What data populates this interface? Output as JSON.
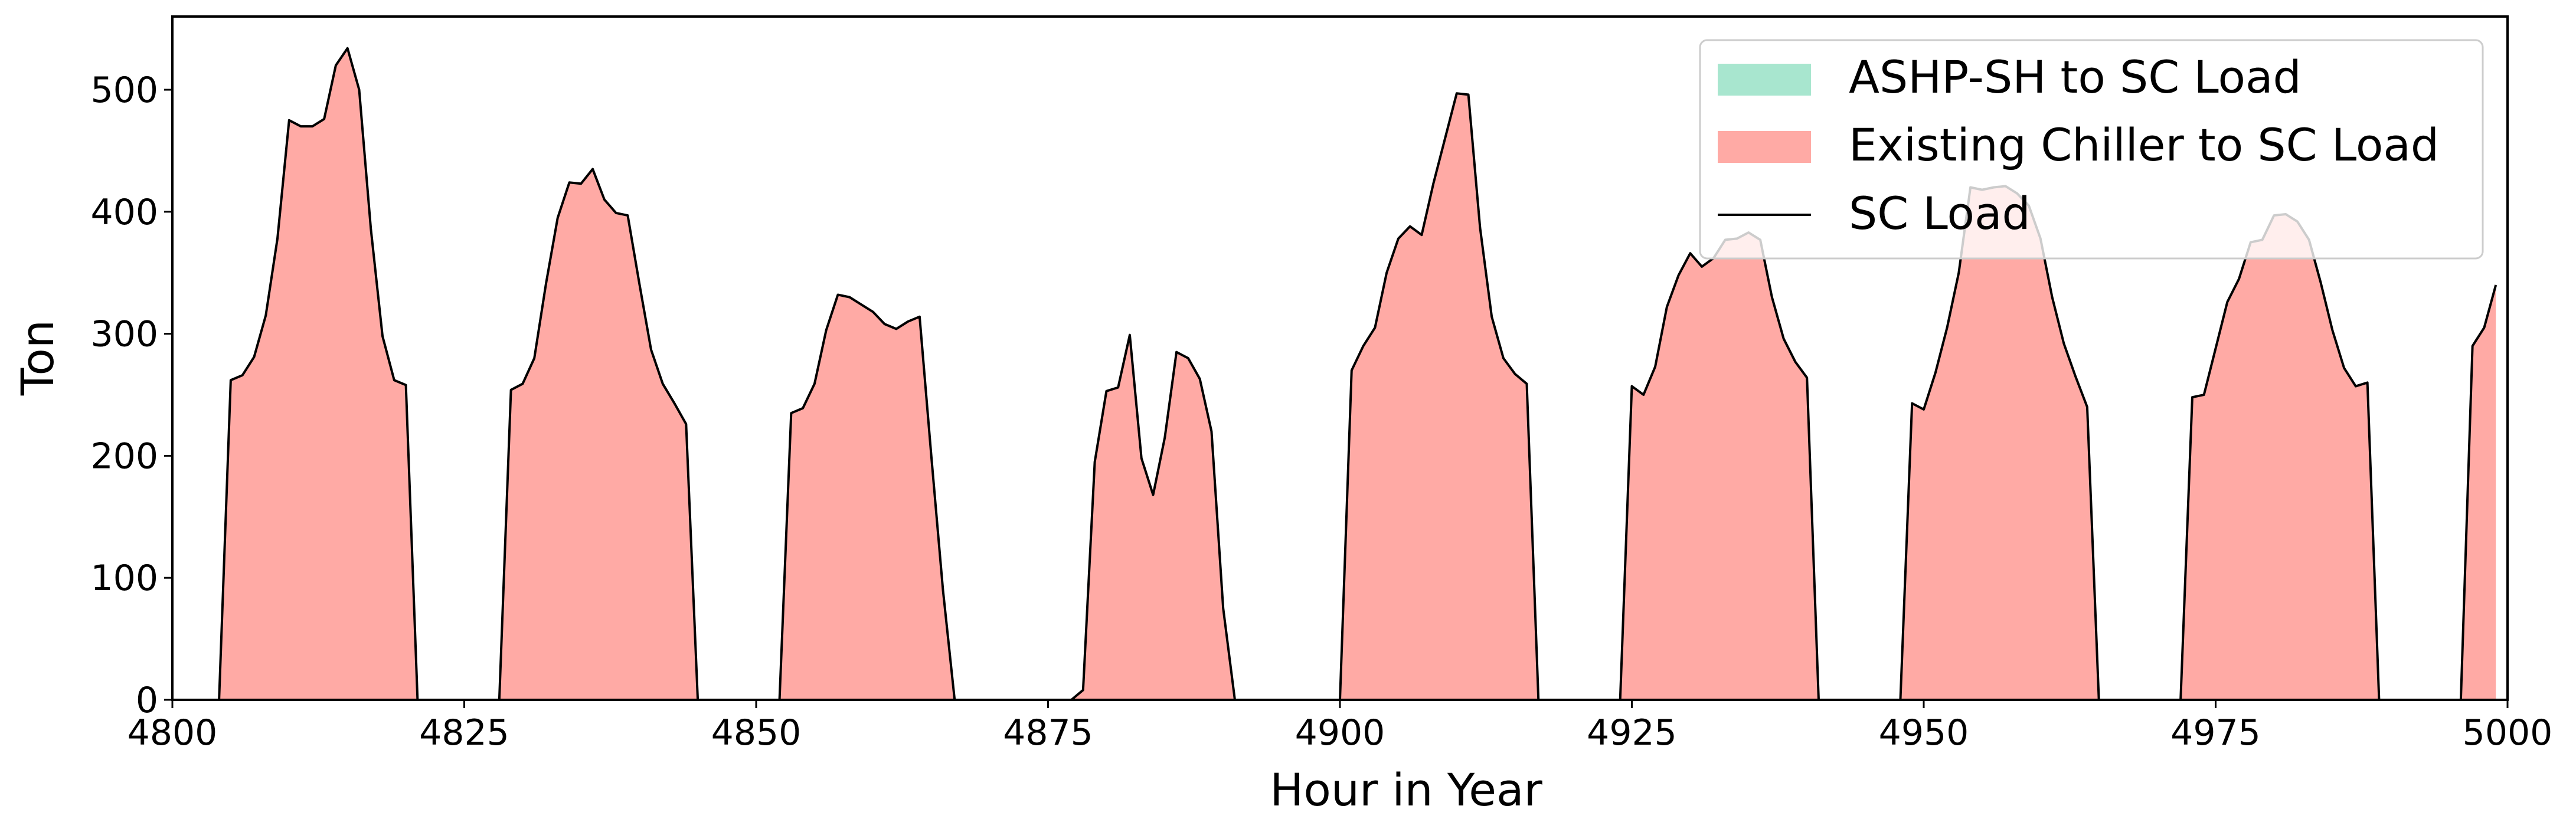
{
  "chart_data": {
    "type": "area",
    "title": "",
    "xlabel": "Hour in Year",
    "ylabel": "Ton",
    "xlim": [
      4800,
      5000
    ],
    "ylim": [
      0,
      560
    ],
    "xticks": [
      4800,
      4825,
      4850,
      4875,
      4900,
      4925,
      4950,
      4975,
      5000
    ],
    "yticks": [
      0,
      100,
      200,
      300,
      400,
      500
    ],
    "grid": false,
    "legend_position": "top-right",
    "colors": {
      "ashp": "#a8e6cf",
      "chiller": "#ffaaa5",
      "load_line": "#000000"
    },
    "legend": [
      {
        "key": "ashp",
        "label": "ASHP-SH to SC Load"
      },
      {
        "key": "chiller",
        "label": "Existing Chiller to SC Load"
      },
      {
        "key": "load",
        "label": "SC Load"
      }
    ],
    "series": [
      {
        "name": "ASHP-SH to SC Load",
        "x": [
          4800,
          5000
        ],
        "y": [
          0,
          0
        ]
      },
      {
        "name": "Existing Chiller to SC Load",
        "x": [
          4800,
          4804,
          4805,
          4806,
          4807,
          4808,
          4809,
          4810,
          4811,
          4812,
          4813,
          4814,
          4815,
          4816,
          4817,
          4818,
          4819,
          4820,
          4821,
          4828,
          4829,
          4830,
          4831,
          4832,
          4833,
          4834,
          4835,
          4836,
          4837,
          4838,
          4839,
          4840,
          4841,
          4842,
          4843,
          4844,
          4845,
          4852,
          4853,
          4854,
          4855,
          4856,
          4857,
          4858,
          4859,
          4860,
          4861,
          4862,
          4863,
          4864,
          4865,
          4866,
          4867,
          4877,
          4878,
          4879,
          4880,
          4881,
          4882,
          4883,
          4884,
          4885,
          4886,
          4887,
          4888,
          4889,
          4890,
          4891,
          4900,
          4901,
          4902,
          4903,
          4904,
          4905,
          4906,
          4907,
          4908,
          4909,
          4910,
          4911,
          4912,
          4913,
          4914,
          4915,
          4916,
          4917,
          4924,
          4925,
          4926,
          4927,
          4928,
          4929,
          4930,
          4931,
          4932,
          4933,
          4934,
          4935,
          4936,
          4937,
          4938,
          4939,
          4940,
          4941,
          4948,
          4949,
          4950,
          4951,
          4952,
          4953,
          4954,
          4955,
          4956,
          4957,
          4958,
          4959,
          4960,
          4961,
          4962,
          4963,
          4964,
          4965,
          4972,
          4973,
          4974,
          4975,
          4976,
          4977,
          4978,
          4979,
          4980,
          4981,
          4982,
          4983,
          4984,
          4985,
          4986,
          4987,
          4988,
          4989,
          4996,
          4997,
          4998,
          4999
        ],
        "y": [
          0,
          0,
          262,
          266,
          281,
          315,
          378,
          475,
          470,
          470,
          476,
          520,
          534,
          500,
          386,
          298,
          262,
          258,
          0,
          0,
          254,
          259,
          280,
          341,
          395,
          424,
          423,
          435,
          410,
          399,
          397,
          341,
          287,
          259,
          243,
          226,
          0,
          0,
          235,
          239,
          259,
          303,
          332,
          330,
          324,
          318,
          308,
          304,
          310,
          314,
          200,
          90,
          0,
          0,
          8,
          195,
          253,
          256,
          299,
          198,
          168,
          215,
          285,
          280,
          263,
          220,
          75,
          0,
          0,
          270,
          290,
          305,
          350,
          378,
          388,
          381,
          423,
          460,
          497,
          496,
          387,
          314,
          280,
          267,
          259,
          0,
          0,
          257,
          250,
          273,
          322,
          348,
          366,
          355,
          362,
          377,
          378,
          383,
          377,
          330,
          296,
          277,
          264,
          0,
          0,
          243,
          238,
          268,
          305,
          350,
          420,
          418,
          420,
          421,
          415,
          405,
          378,
          330,
          292,
          265,
          240,
          0,
          0,
          248,
          250,
          288,
          326,
          345,
          375,
          377,
          397,
          398,
          392,
          377,
          342,
          303,
          272,
          257,
          260,
          0,
          0,
          290,
          305,
          340
        ]
      }
    ],
    "line_series": {
      "name": "SC Load",
      "same_as": "Existing Chiller to SC Load"
    }
  }
}
